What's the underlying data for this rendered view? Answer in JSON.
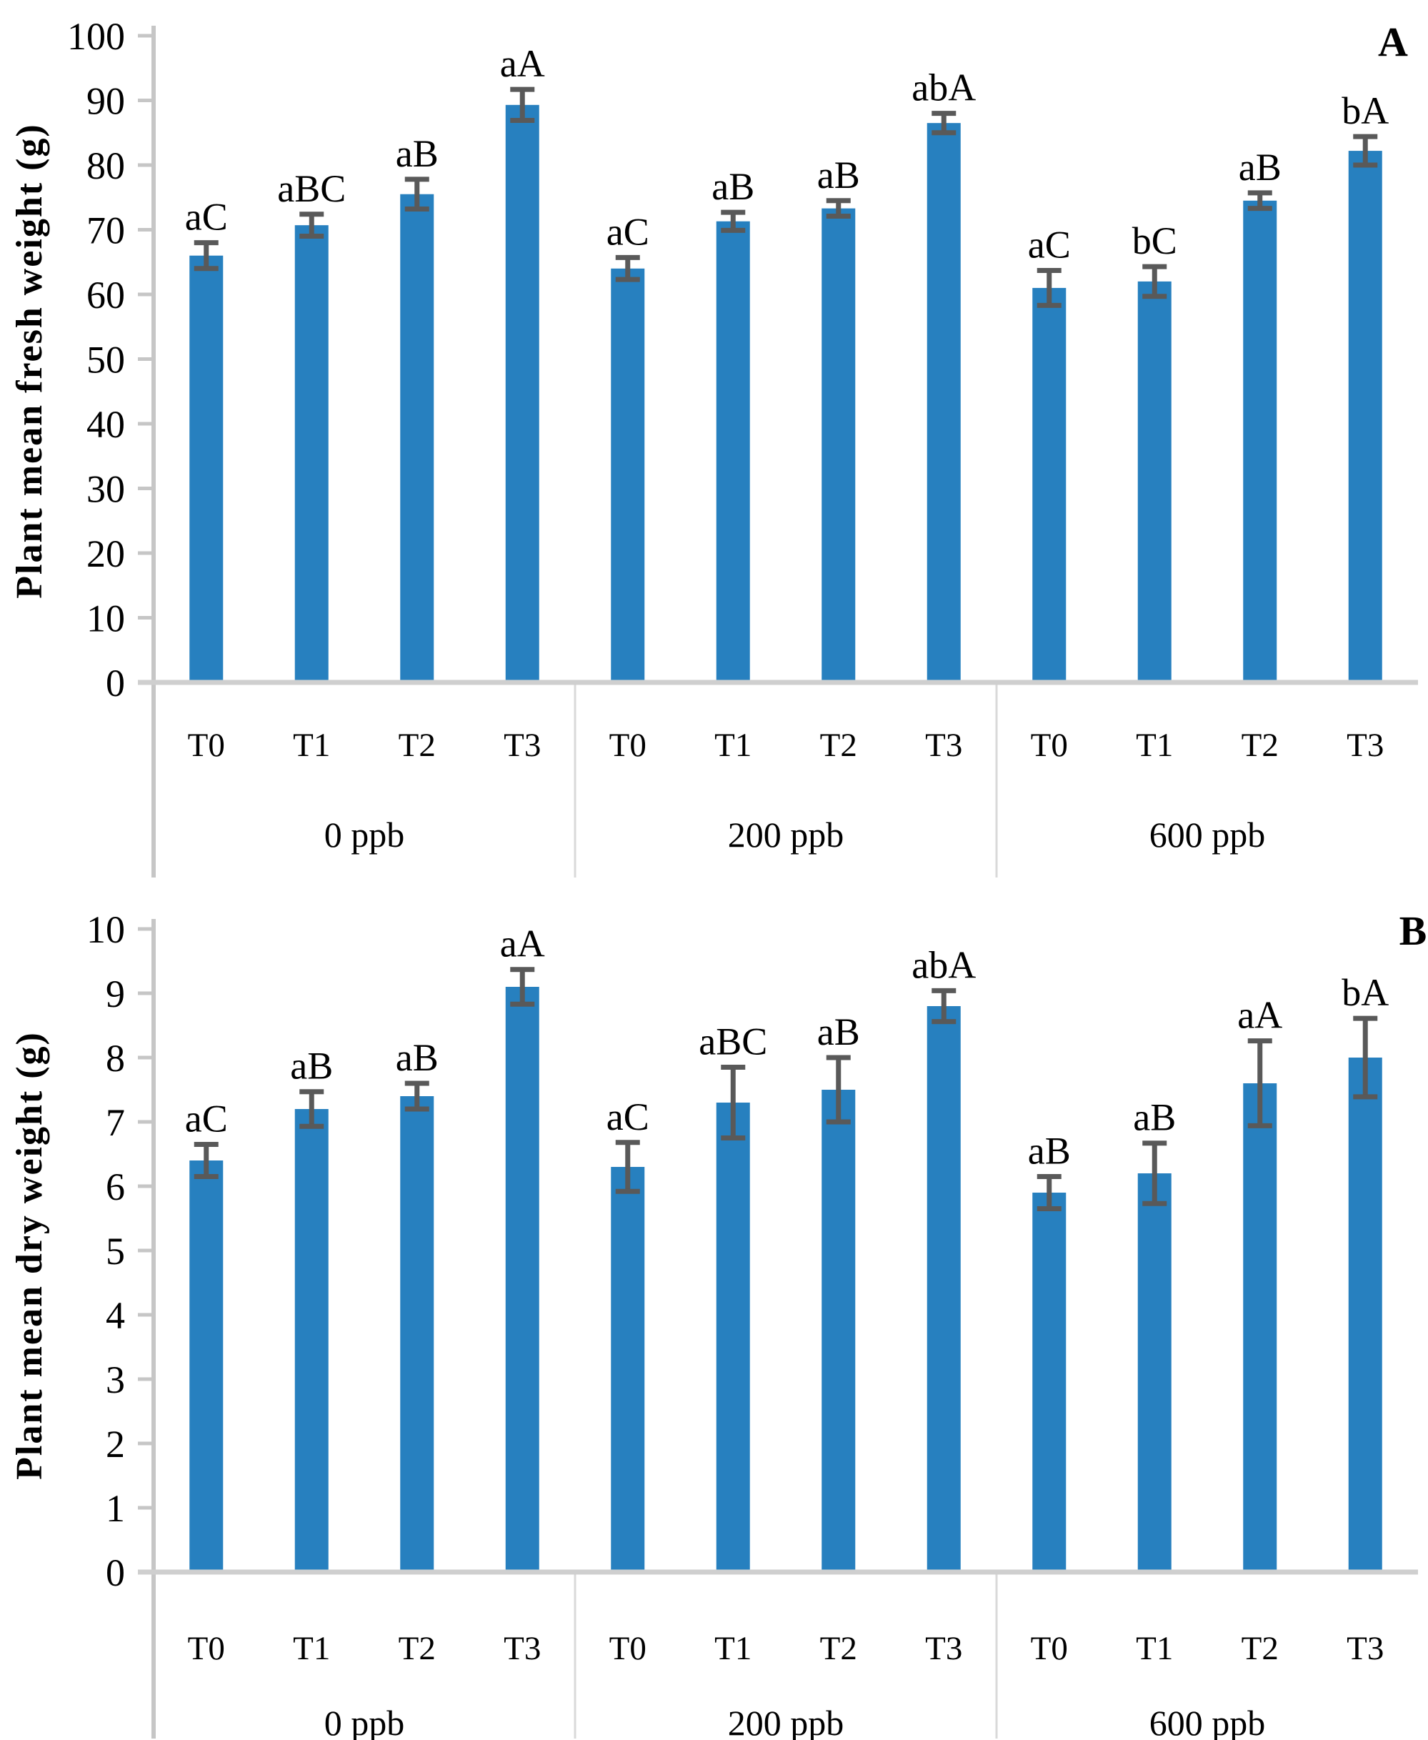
{
  "colors": {
    "bar": "#2780BF",
    "error_bar": "#595959",
    "axis_line": "#C6C6C6",
    "baseline": "#CFCFCF",
    "divider": "#D9D9D9",
    "text": "#000000"
  },
  "chart_data": [
    {
      "type": "bar",
      "panel_letter": "A",
      "ylabel": "Plant mean fresh weight (g)",
      "xlabel": "",
      "ylim": [
        0,
        100
      ],
      "ytick_step": 10,
      "grid": false,
      "legend": "none",
      "categories": [
        "T0",
        "T1",
        "T2",
        "T3"
      ],
      "group_labels": [
        "0 ppb",
        "200 ppb",
        "600 ppb"
      ],
      "series": [
        {
          "group": "0 ppb",
          "bars": [
            {
              "category": "T0",
              "value": 66.0,
              "error": 2.0,
              "letter": "aC"
            },
            {
              "category": "T1",
              "value": 70.7,
              "error": 1.7,
              "letter": "aBC"
            },
            {
              "category": "T2",
              "value": 75.5,
              "error": 2.3,
              "letter": "aB"
            },
            {
              "category": "T3",
              "value": 89.3,
              "error": 2.4,
              "letter": "aA"
            }
          ]
        },
        {
          "group": "200 ppb",
          "bars": [
            {
              "category": "T0",
              "value": 64.0,
              "error": 1.7,
              "letter": "aC"
            },
            {
              "category": "T1",
              "value": 71.3,
              "error": 1.4,
              "letter": "aB"
            },
            {
              "category": "T2",
              "value": 73.3,
              "error": 1.2,
              "letter": "aB"
            },
            {
              "category": "T3",
              "value": 86.5,
              "error": 1.5,
              "letter": "abA"
            }
          ]
        },
        {
          "group": "600 ppb",
          "bars": [
            {
              "category": "T0",
              "value": 61.0,
              "error": 2.7,
              "letter": "aC"
            },
            {
              "category": "T1",
              "value": 62.0,
              "error": 2.3,
              "letter": "bC"
            },
            {
              "category": "T2",
              "value": 74.5,
              "error": 1.2,
              "letter": "aB"
            },
            {
              "category": "T3",
              "value": 82.2,
              "error": 2.2,
              "letter": "bA"
            }
          ]
        }
      ]
    },
    {
      "type": "bar",
      "panel_letter": "B",
      "ylabel": "Plant mean dry weight (g)",
      "xlabel": "",
      "ylim": [
        0,
        10
      ],
      "ytick_step": 1,
      "grid": false,
      "legend": "none",
      "categories": [
        "T0",
        "T1",
        "T2",
        "T3"
      ],
      "group_labels": [
        "0 ppb",
        "200 ppb",
        "600 ppb"
      ],
      "series": [
        {
          "group": "0 ppb",
          "bars": [
            {
              "category": "T0",
              "value": 6.4,
              "error": 0.25,
              "letter": "aC"
            },
            {
              "category": "T1",
              "value": 7.2,
              "error": 0.27,
              "letter": "aB"
            },
            {
              "category": "T2",
              "value": 7.4,
              "error": 0.2,
              "letter": "aB"
            },
            {
              "category": "T3",
              "value": 9.1,
              "error": 0.27,
              "letter": "aA"
            }
          ]
        },
        {
          "group": "200 ppb",
          "bars": [
            {
              "category": "T0",
              "value": 6.3,
              "error": 0.38,
              "letter": "aC"
            },
            {
              "category": "T1",
              "value": 7.3,
              "error": 0.55,
              "letter": "aBC"
            },
            {
              "category": "T2",
              "value": 7.5,
              "error": 0.5,
              "letter": "aB"
            },
            {
              "category": "T3",
              "value": 8.8,
              "error": 0.24,
              "letter": "abA"
            }
          ]
        },
        {
          "group": "600 ppb",
          "bars": [
            {
              "category": "T0",
              "value": 5.9,
              "error": 0.25,
              "letter": "aB"
            },
            {
              "category": "T1",
              "value": 6.2,
              "error": 0.47,
              "letter": "aB"
            },
            {
              "category": "T2",
              "value": 7.6,
              "error": 0.66,
              "letter": "aA"
            },
            {
              "category": "T3",
              "value": 8.0,
              "error": 0.61,
              "letter": "bA"
            }
          ]
        }
      ]
    }
  ]
}
